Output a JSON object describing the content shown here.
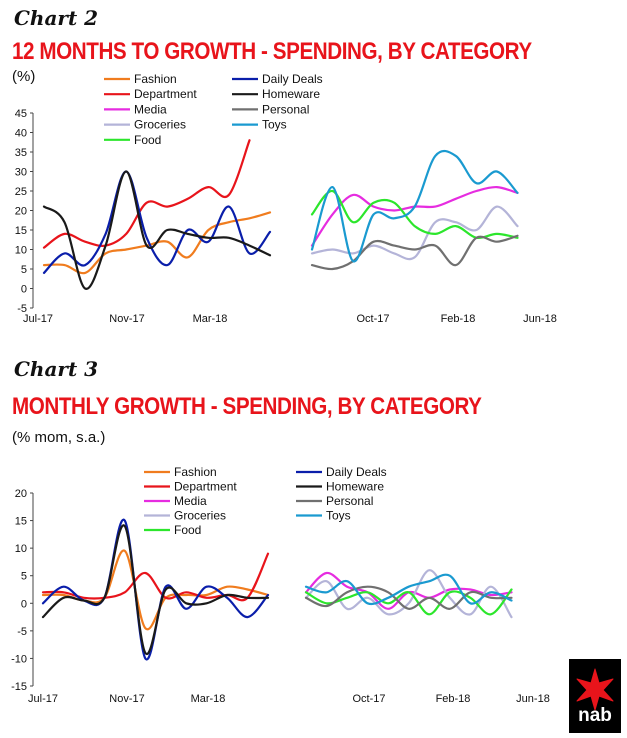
{
  "chart_data": [
    {
      "type": "line",
      "label": "Chart 2",
      "title": "12 MONTHS TO GROWTH - SPENDING, BY CATEGORY",
      "unit": "(%)",
      "ylim": [
        -5,
        45
      ],
      "yticks": [
        -5,
        0,
        5,
        10,
        15,
        20,
        25,
        30,
        35,
        40,
        45
      ],
      "xtick_labels": [
        "Jul-17",
        "Nov-17",
        "Mar-18",
        "Oct-17",
        "Feb-18",
        "Jun-18"
      ],
      "legend": "top",
      "grid": false,
      "panels": [
        {
          "x": [
            "Jul-17",
            "Aug-17",
            "Sep-17",
            "Oct-17",
            "Nov-17",
            "Dec-17",
            "Jan-18",
            "Feb-18",
            "Mar-18",
            "Apr-18",
            "May-18",
            "Jun-18"
          ],
          "series": [
            {
              "name": "Fashion",
              "values": [
                6,
                6,
                4,
                9,
                10,
                11,
                12,
                8,
                15,
                17,
                18,
                19.5
              ]
            },
            {
              "name": "Department",
              "values": [
                10.5,
                14,
                12,
                11,
                14,
                22,
                21,
                23,
                26,
                24,
                38,
                null
              ]
            },
            {
              "name": "Media",
              "values": []
            },
            {
              "name": "Groceries",
              "values": []
            },
            {
              "name": "Food",
              "values": []
            },
            {
              "name": "Daily Deals",
              "values": [
                4,
                9,
                6,
                14,
                30,
                13,
                6,
                15,
                12,
                21,
                9,
                14.5
              ]
            },
            {
              "name": "Homeware",
              "values": [
                21,
                17,
                0,
                11,
                30,
                11,
                15,
                14,
                13,
                13,
                11,
                8.5
              ]
            },
            {
              "name": "Personal",
              "values": []
            },
            {
              "name": "Toys",
              "values": []
            }
          ]
        },
        {
          "x": [
            "Jul-17",
            "Aug-17",
            "Sep-17",
            "Oct-17",
            "Nov-17",
            "Dec-17",
            "Jan-18",
            "Feb-18",
            "Mar-18",
            "Apr-18",
            "May-18",
            "Jun-18"
          ],
          "series": [
            {
              "name": "Fashion",
              "values": []
            },
            {
              "name": "Department",
              "values": []
            },
            {
              "name": "Media",
              "values": [
                11,
                19,
                24,
                21,
                20,
                21,
                21,
                23,
                25,
                26,
                24.5,
                null
              ]
            },
            {
              "name": "Groceries",
              "values": [
                9,
                10,
                9,
                11,
                9,
                8,
                17,
                17,
                15,
                21,
                16,
                null
              ]
            },
            {
              "name": "Food",
              "values": [
                19,
                25,
                17,
                22,
                22,
                16,
                14,
                16,
                13,
                14,
                13,
                null
              ]
            },
            {
              "name": "Daily Deals",
              "values": []
            },
            {
              "name": "Homeware",
              "values": []
            },
            {
              "name": "Personal",
              "values": [
                6,
                5,
                7,
                12,
                11,
                10,
                11,
                6,
                13,
                12,
                13.5,
                null
              ]
            },
            {
              "name": "Toys",
              "values": [
                10,
                26,
                7,
                19,
                18,
                21,
                34,
                34,
                27,
                30,
                24.5,
                null
              ]
            }
          ]
        }
      ]
    },
    {
      "type": "line",
      "label": "Chart 3",
      "title": "MONTHLY GROWTH - SPENDING, BY CATEGORY",
      "unit": "(% mom, s.a.)",
      "ylim": [
        -15,
        20
      ],
      "yticks": [
        -15,
        -10,
        -5,
        0,
        5,
        10,
        15,
        20
      ],
      "xtick_labels": [
        "Jul-17",
        "Nov-17",
        "Mar-18",
        "Oct-17",
        "Feb-18",
        "Jun-18"
      ],
      "legend": "top",
      "grid": false,
      "panels": [
        {
          "x": [
            "Jul-17",
            "Aug-17",
            "Sep-17",
            "Oct-17",
            "Nov-17",
            "Dec-17",
            "Jan-18",
            "Feb-18",
            "Mar-18",
            "Apr-18",
            "May-18",
            "Jun-18"
          ],
          "series": [
            {
              "name": "Fashion",
              "values": [
                1.5,
                1.5,
                0.5,
                1,
                9.5,
                -4.5,
                1,
                1.5,
                1.5,
                3,
                2.5,
                1.5
              ]
            },
            {
              "name": "Department",
              "values": [
                2,
                2,
                1,
                1,
                2,
                5.5,
                1,
                2,
                1,
                1.5,
                1,
                9
              ]
            },
            {
              "name": "Media",
              "values": []
            },
            {
              "name": "Groceries",
              "values": []
            },
            {
              "name": "Food",
              "values": []
            },
            {
              "name": "Daily Deals",
              "values": [
                0,
                3,
                0.5,
                1,
                15,
                -10,
                3,
                -1,
                3,
                1,
                -2.5,
                1.5
              ]
            },
            {
              "name": "Homeware",
              "values": [
                -2.5,
                1,
                0.5,
                1,
                14,
                -9,
                2.5,
                0,
                0,
                1.5,
                1,
                1
              ]
            },
            {
              "name": "Personal",
              "values": []
            },
            {
              "name": "Toys",
              "values": []
            }
          ]
        },
        {
          "x": [
            "Jul-17",
            "Aug-17",
            "Sep-17",
            "Oct-17",
            "Nov-17",
            "Dec-17",
            "Jan-18",
            "Feb-18",
            "Mar-18",
            "Apr-18",
            "May-18",
            "Jun-18"
          ],
          "series": [
            {
              "name": "Fashion",
              "values": []
            },
            {
              "name": "Department",
              "values": []
            },
            {
              "name": "Media",
              "values": [
                2,
                5.5,
                3,
                2,
                -1,
                2,
                1,
                2.5,
                2.5,
                1.5,
                2,
                null
              ]
            },
            {
              "name": "Groceries",
              "values": [
                1,
                4,
                -1,
                1,
                -2,
                0,
                6,
                1,
                -2,
                3,
                -2.5,
                null
              ]
            },
            {
              "name": "Food",
              "values": [
                2,
                0,
                1,
                2,
                0,
                2,
                -2,
                2,
                1,
                -2,
                2.5,
                null
              ]
            },
            {
              "name": "Daily Deals",
              "values": []
            },
            {
              "name": "Homeware",
              "values": []
            },
            {
              "name": "Personal",
              "values": [
                1,
                -0.5,
                2,
                3,
                2,
                -1,
                1,
                -1,
                2,
                1,
                1,
                null
              ]
            },
            {
              "name": "Toys",
              "values": [
                3,
                2,
                4,
                0,
                1,
                3,
                4,
                5,
                0,
                2,
                0.5,
                null
              ]
            }
          ]
        }
      ]
    }
  ],
  "series_colors": {
    "Fashion": "#f07c1e",
    "Department": "#e8141b",
    "Media": "#e62ce0",
    "Groceries": "#b4b4d8",
    "Food": "#2ce62c",
    "Daily Deals": "#0a1eaa",
    "Homeware": "#1a1a1a",
    "Personal": "#707070",
    "Toys": "#1a9ad0"
  },
  "legend_left": [
    "Fashion",
    "Department",
    "Media",
    "Groceries",
    "Food"
  ],
  "legend_right": [
    "Daily Deals",
    "Homeware",
    "Personal",
    "Toys"
  ],
  "logo": {
    "text": "nab",
    "icon": "star-icon",
    "colors": {
      "bg": "#000000",
      "star": "#e8141b"
    }
  }
}
